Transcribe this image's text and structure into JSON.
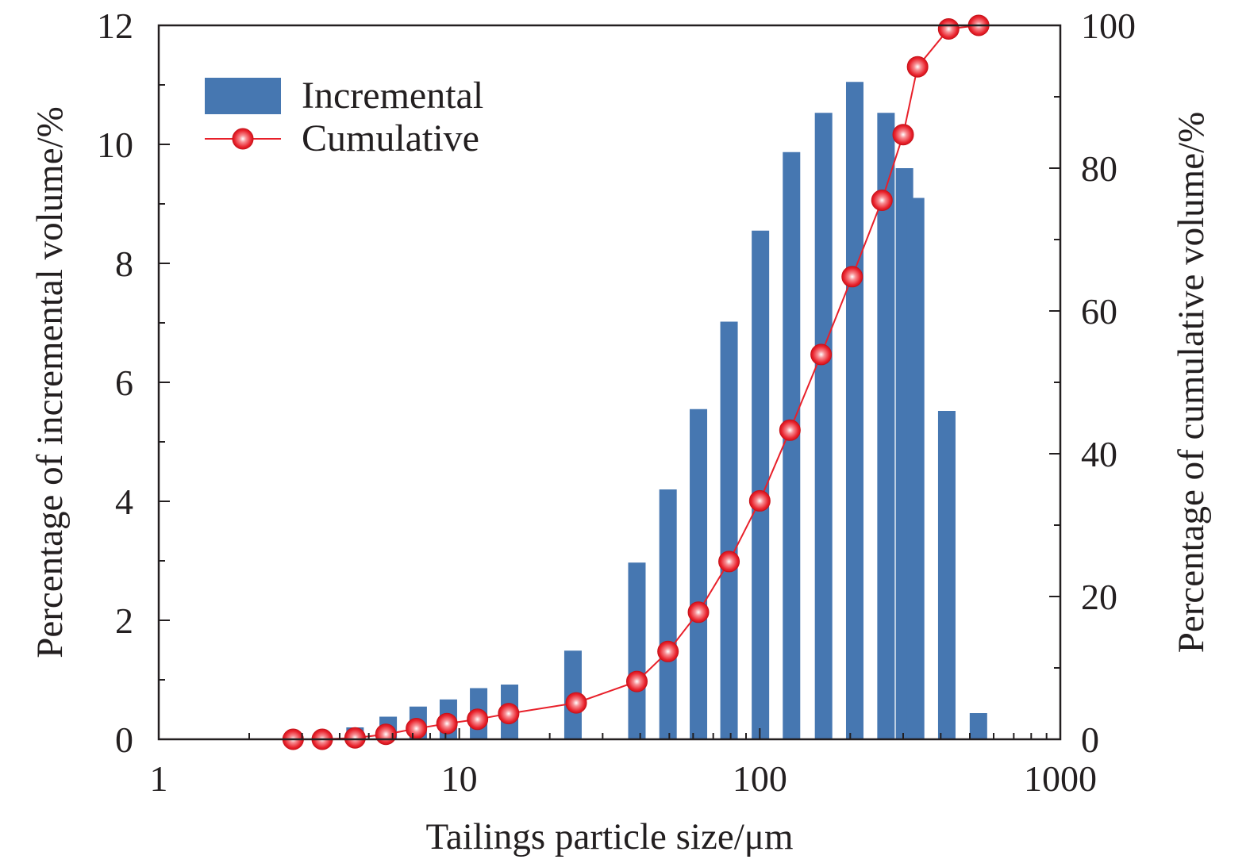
{
  "chart_data": {
    "type": "bar",
    "xlabel": "Tailings particle size/μm",
    "ylabel_left": "Percentage of incremental volume/%",
    "ylabel_right": "Percentage of cumulative volume/%",
    "x_scale": "log",
    "xlim": [
      1,
      1000
    ],
    "x_ticks": [
      "1",
      "10",
      "100",
      "1000"
    ],
    "ylim_left": [
      0,
      12
    ],
    "y_ticks_left": [
      "0",
      "2",
      "4",
      "6",
      "8",
      "10",
      "12"
    ],
    "ylim_right": [
      0,
      100
    ],
    "y_ticks_right": [
      "0",
      "20",
      "40",
      "60",
      "80",
      "100"
    ],
    "grid": false,
    "legend_position": "top-left",
    "colors": {
      "incremental": "#4677b1",
      "cumulative": "#e8202a",
      "axis": "#231f20"
    },
    "series": [
      {
        "name": "Incremental",
        "type": "bar",
        "axis": "left",
        "x": [
          4.5,
          5.8,
          7.3,
          9.2,
          11.6,
          14.7,
          23.9,
          39.0,
          49.5,
          62.5,
          79.0,
          100.5,
          127.5,
          163.0,
          207.0,
          263.0,
          303.0,
          330.0,
          419.0,
          534.0
        ],
        "values": [
          0.2,
          0.38,
          0.55,
          0.67,
          0.86,
          0.92,
          1.49,
          2.97,
          4.2,
          5.55,
          7.02,
          8.55,
          9.87,
          10.53,
          11.05,
          10.53,
          9.6,
          9.1,
          5.52,
          0.44
        ]
      },
      {
        "name": "Cumulative",
        "type": "line",
        "axis": "right",
        "x": [
          2.8,
          3.5,
          4.5,
          5.7,
          7.2,
          9.1,
          11.5,
          14.6,
          24.5,
          39.0,
          49.5,
          62.5,
          79.0,
          100.0,
          126.0,
          160.0,
          203.0,
          255.0,
          300.0,
          335.0,
          425.0,
          535.0
        ],
        "values": [
          0.0,
          0.0,
          0.2,
          0.7,
          1.5,
          2.2,
          2.8,
          3.6,
          5.1,
          8.1,
          12.3,
          17.8,
          24.9,
          33.4,
          43.3,
          53.9,
          64.8,
          75.5,
          84.7,
          94.2,
          99.5,
          100.0
        ]
      }
    ]
  }
}
